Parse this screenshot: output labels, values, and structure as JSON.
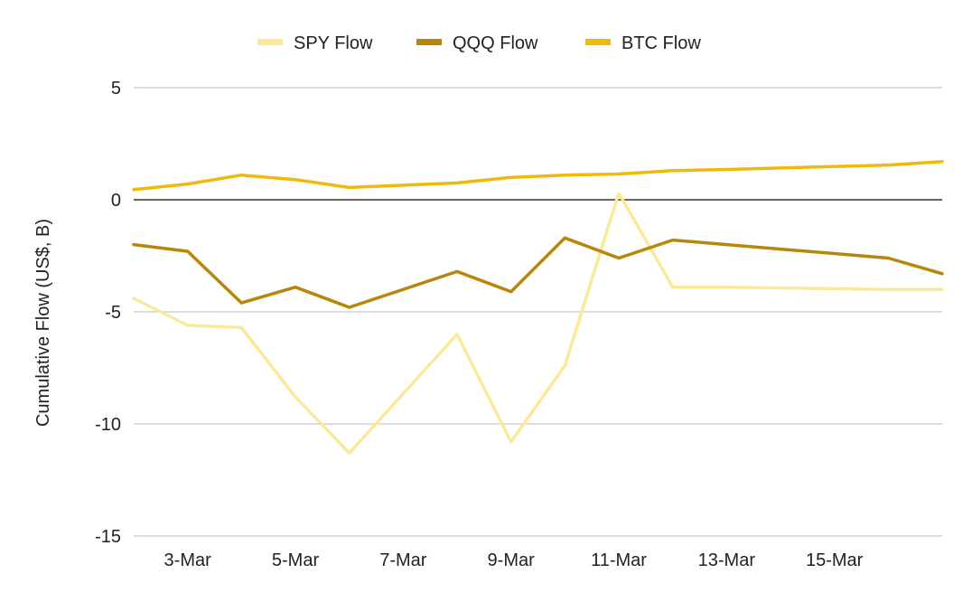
{
  "chart_data": {
    "type": "line",
    "title": "",
    "xlabel": "",
    "ylabel": "Cumulative Flow (US$, B)",
    "ylim": [
      -15,
      5
    ],
    "yticks": [
      5,
      0,
      -5,
      -10,
      -15
    ],
    "x": [
      "2-Mar",
      "3-Mar",
      "4-Mar",
      "5-Mar",
      "6-Mar",
      "8-Mar",
      "9-Mar",
      "10-Mar",
      "11-Mar",
      "12-Mar",
      "13-Mar",
      "16-Mar",
      "17-Mar"
    ],
    "x_index": [
      0,
      1,
      2,
      3,
      4,
      6,
      7,
      8,
      9,
      10,
      11,
      14,
      15
    ],
    "x_tick_labels": [
      {
        "label": "3-Mar",
        "index": 1
      },
      {
        "label": "5-Mar",
        "index": 3
      },
      {
        "label": "7-Mar",
        "index": 5
      },
      {
        "label": "9-Mar",
        "index": 7
      },
      {
        "label": "11-Mar",
        "index": 9
      },
      {
        "label": "13-Mar",
        "index": 11
      },
      {
        "label": "15-Mar",
        "index": 13
      }
    ],
    "x_range": [
      0,
      15
    ],
    "zero_line": true,
    "legend_position": "top",
    "series": [
      {
        "name": "SPY Flow",
        "color": "#fbe99a",
        "values": [
          -4.4,
          -5.6,
          -5.7,
          -8.8,
          -11.3,
          -6.0,
          -10.8,
          -7.4,
          0.3,
          -3.9,
          -3.9,
          -4.0,
          -4.0
        ]
      },
      {
        "name": "QQQ Flow",
        "color": "#b8860b",
        "values": [
          -2.0,
          -2.3,
          -4.6,
          -3.9,
          -4.8,
          -3.2,
          -4.1,
          -1.7,
          -2.6,
          -1.8,
          -2.0,
          -2.6,
          -3.3
        ]
      },
      {
        "name": "BTC Flow",
        "color": "#f0b90b",
        "values": [
          0.45,
          0.7,
          1.1,
          0.9,
          0.55,
          0.75,
          1.0,
          1.1,
          1.15,
          1.3,
          1.35,
          1.55,
          1.7
        ]
      }
    ]
  }
}
